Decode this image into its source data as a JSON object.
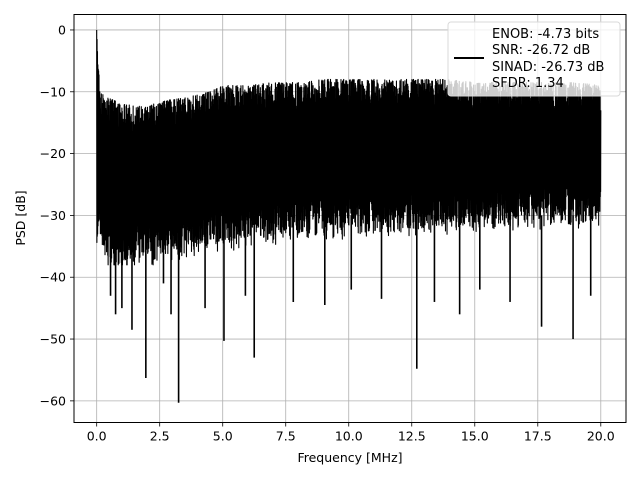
{
  "chart_data": {
    "type": "line",
    "title": "",
    "xlabel": "Frequency [MHz]",
    "ylabel": "PSD [dB]",
    "xlim": [
      -0.9,
      21.0
    ],
    "ylim": [
      -63.5,
      2.5
    ],
    "xticks": [
      0.0,
      2.5,
      5.0,
      7.5,
      10.0,
      12.5,
      15.0,
      17.5,
      20.0
    ],
    "xtick_labels": [
      "0.0",
      "2.5",
      "5.0",
      "7.5",
      "10.0",
      "12.5",
      "15.0",
      "17.5",
      "20.0"
    ],
    "yticks": [
      0,
      -10,
      -20,
      -30,
      -40,
      -50,
      -60
    ],
    "ytick_labels": [
      "0",
      "−10",
      "−20",
      "−30",
      "−40",
      "−50",
      "−60"
    ],
    "grid": true,
    "legend_position": "top-right",
    "legend_entries": [
      "ENOB: -4.73 bits",
      "SNR: -26.72 dB",
      "SINAD: -26.73 dB",
      "SFDR: 1.34"
    ],
    "series": [
      {
        "color": "#000000",
        "x_range": [
          0.0,
          20.0
        ],
        "upper_envelope": [
          [
            0.0,
            0.0
          ],
          [
            0.05,
            -3.0
          ],
          [
            0.1,
            -8.0
          ],
          [
            0.2,
            -10.0
          ],
          [
            0.5,
            -11.0
          ],
          [
            1.0,
            -12.0
          ],
          [
            2.0,
            -12.5
          ],
          [
            2.5,
            -11.5
          ],
          [
            3.5,
            -11.0
          ],
          [
            4.5,
            -10.0
          ],
          [
            5.0,
            -9.0
          ],
          [
            6.0,
            -9.0
          ],
          [
            7.0,
            -8.5
          ],
          [
            8.0,
            -8.5
          ],
          [
            9.0,
            -8.0
          ],
          [
            10.0,
            -8.0
          ],
          [
            11.0,
            -8.0
          ],
          [
            12.0,
            -8.0
          ],
          [
            13.0,
            -8.0
          ],
          [
            14.0,
            -8.0
          ],
          [
            15.0,
            -8.5
          ],
          [
            16.0,
            -8.5
          ],
          [
            17.0,
            -8.5
          ],
          [
            18.0,
            -8.5
          ],
          [
            19.0,
            -8.5
          ],
          [
            20.0,
            -9.0
          ]
        ],
        "lower_envelope": [
          [
            0.0,
            -32.0
          ],
          [
            0.2,
            -34.0
          ],
          [
            0.5,
            -36.0
          ],
          [
            1.0,
            -37.0
          ],
          [
            2.0,
            -36.0
          ],
          [
            3.0,
            -35.0
          ],
          [
            4.0,
            -34.0
          ],
          [
            5.0,
            -33.5
          ],
          [
            7.5,
            -32.0
          ],
          [
            10.0,
            -31.5
          ],
          [
            12.5,
            -31.0
          ],
          [
            15.0,
            -30.5
          ],
          [
            17.5,
            -30.0
          ],
          [
            20.0,
            -29.5
          ]
        ],
        "deep_dips": [
          [
            0.55,
            -43.0
          ],
          [
            0.75,
            -46.0
          ],
          [
            1.0,
            -45.0
          ],
          [
            1.4,
            -48.5
          ],
          [
            1.95,
            -56.3
          ],
          [
            2.65,
            -41.0
          ],
          [
            2.95,
            -46.0
          ],
          [
            3.25,
            -60.3
          ],
          [
            4.3,
            -45.0
          ],
          [
            5.05,
            -50.3
          ],
          [
            5.9,
            -43.0
          ],
          [
            6.25,
            -53.0
          ],
          [
            7.8,
            -44.0
          ],
          [
            9.05,
            -44.5
          ],
          [
            10.1,
            -42.0
          ],
          [
            11.3,
            -43.5
          ],
          [
            12.7,
            -54.8
          ],
          [
            13.4,
            -44.0
          ],
          [
            14.4,
            -46.0
          ],
          [
            15.2,
            -42.0
          ],
          [
            16.4,
            -44.0
          ],
          [
            17.65,
            -48.0
          ],
          [
            18.9,
            -50.0
          ],
          [
            19.6,
            -43.0
          ]
        ],
        "pdf_seed": 7
      }
    ]
  }
}
